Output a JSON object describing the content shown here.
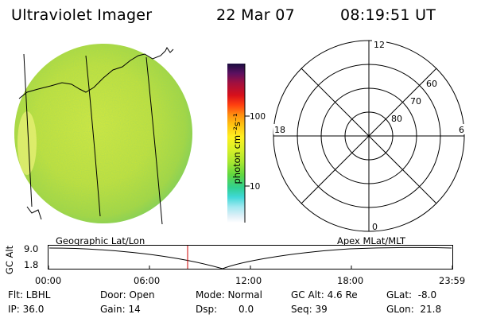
{
  "header": {
    "instrument": "Ultraviolet Imager",
    "date": "22 Mar 07",
    "time": "08:19:51 UT"
  },
  "colorbar": {
    "label": "photon cm⁻²s⁻¹",
    "tick_100": "100",
    "tick_10": "10"
  },
  "polar_plot": {
    "mlt_top": "12",
    "mlt_left": "18",
    "mlt_right": "6",
    "mlt_bottom": "0",
    "lat_60": "60",
    "lat_70": "70",
    "lat_80": "80"
  },
  "timeline": {
    "left_title": "Geographic Lat/Lon",
    "right_title": "Apex MLat/MLT",
    "ylabel": "GC Alt",
    "y_top": "9.0",
    "y_bottom": "1.8",
    "ticks": [
      "00:00",
      "06:00",
      "12:00",
      "18:00",
      "23:59"
    ]
  },
  "status": {
    "flt": "Flt: LBHL",
    "ip": "IP: 36.0",
    "door": "Door: Open",
    "gain": "Gain: 14",
    "mode": "Mode: Normal",
    "dsp_label": "Dsp:",
    "dsp_value": "0.0",
    "gc_alt": "GC Alt: 4.6 Re",
    "seq": "Seq: 39",
    "glat": "GLat:  -8.0",
    "glon": "GLon:  21.8"
  },
  "colors": {
    "earth_fill": "#c8e33a",
    "marker": "#cc0000"
  }
}
